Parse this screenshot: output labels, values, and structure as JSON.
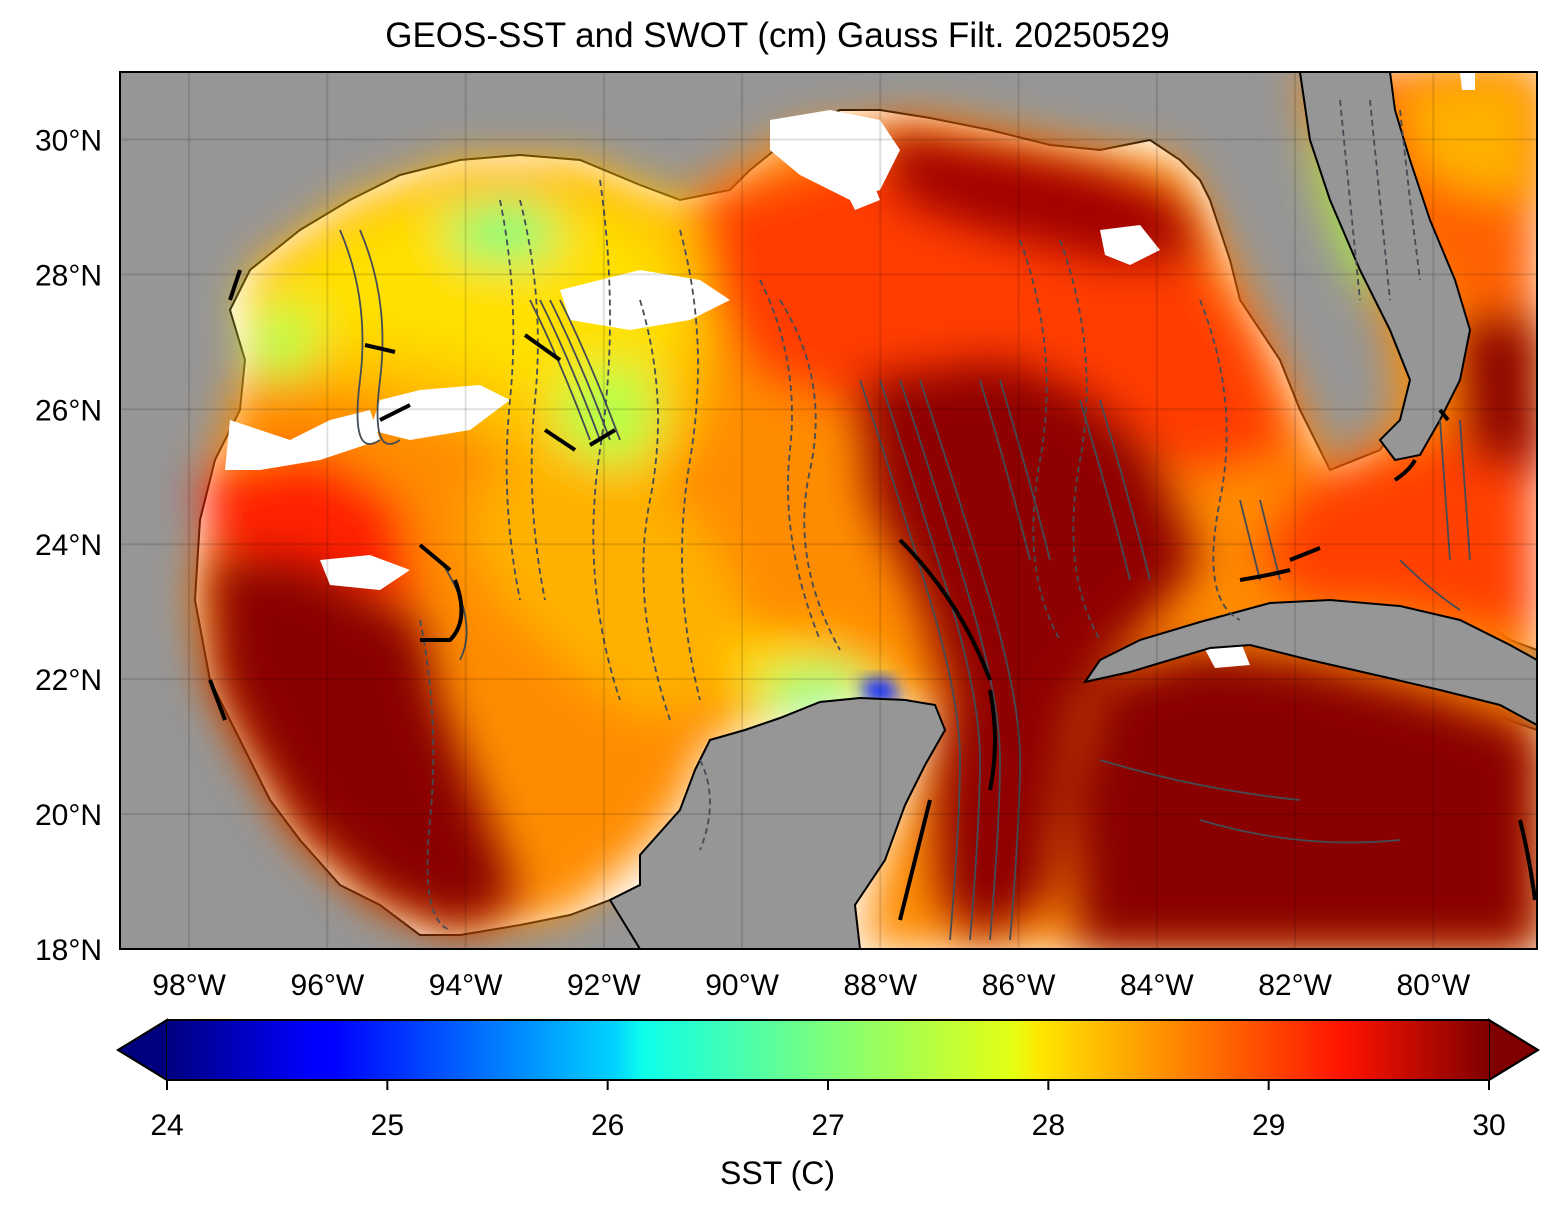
{
  "title": "GEOS-SST  and SWOT (cm) Gauss Filt. 20250529",
  "map": {
    "lon_range": [
      -99,
      -78.5
    ],
    "lat_range": [
      18,
      31
    ],
    "lat_ticks": [
      {
        "value": 30,
        "label": "30°N"
      },
      {
        "value": 28,
        "label": "28°N"
      },
      {
        "value": 26,
        "label": "26°N"
      },
      {
        "value": 24,
        "label": "24°N"
      },
      {
        "value": 22,
        "label": "22°N"
      },
      {
        "value": 20,
        "label": "20°N"
      },
      {
        "value": 18,
        "label": "18°N"
      }
    ],
    "lon_ticks": [
      {
        "value": -98,
        "label": "98°W"
      },
      {
        "value": -96,
        "label": "96°W"
      },
      {
        "value": -94,
        "label": "94°W"
      },
      {
        "value": -92,
        "label": "92°W"
      },
      {
        "value": -90,
        "label": "90°W"
      },
      {
        "value": -88,
        "label": "88°W"
      },
      {
        "value": -86,
        "label": "86°W"
      },
      {
        "value": -84,
        "label": "84°W"
      },
      {
        "value": -82,
        "label": "82°W"
      },
      {
        "value": -80,
        "label": "80°W"
      }
    ],
    "land_color": "#969696",
    "nodata_color": "#ffffff"
  },
  "colorbar": {
    "label": "SST (C)",
    "min": 24,
    "max": 30,
    "extend": "both",
    "colormap": "jet",
    "ticks": [
      "24",
      "25",
      "26",
      "27",
      "28",
      "29",
      "30"
    ]
  }
}
